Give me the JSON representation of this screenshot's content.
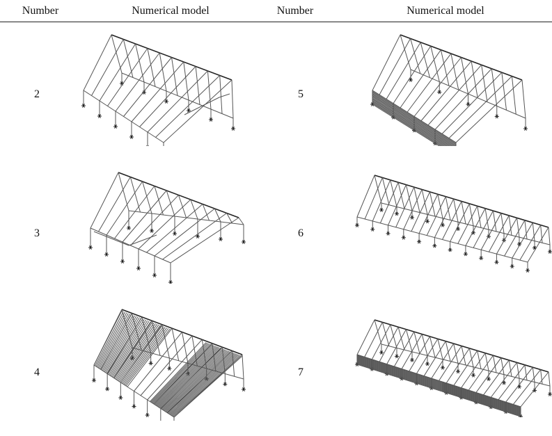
{
  "header": {
    "col1": "Number",
    "col2": "Numerical model",
    "col3": "Number",
    "col4": "Numerical model"
  },
  "rows": [
    {
      "left_number": "2",
      "right_number": "5"
    },
    {
      "left_number": "3",
      "right_number": "6"
    },
    {
      "left_number": "4",
      "right_number": "7"
    }
  ]
}
